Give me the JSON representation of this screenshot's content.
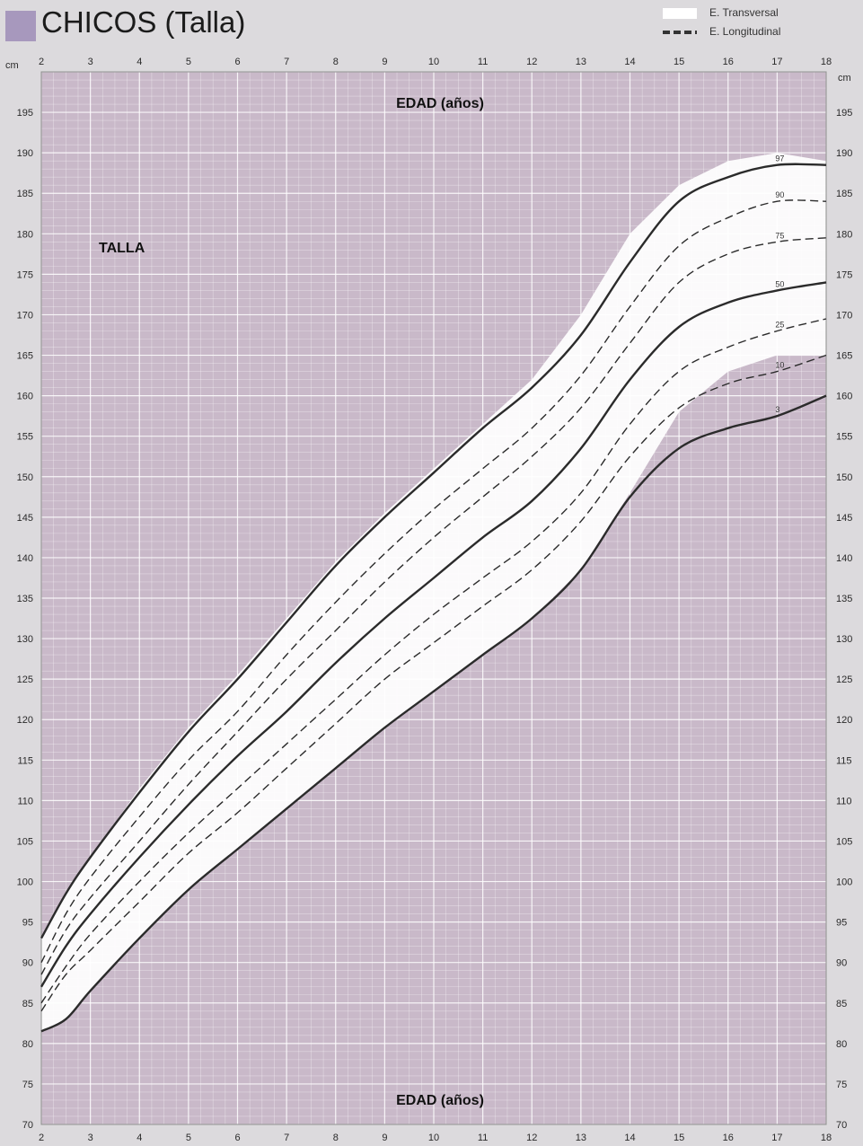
{
  "header": {
    "title": "CHICOS (Talla)",
    "legend": [
      {
        "label": "E. Transversal",
        "swatch": "white-band"
      },
      {
        "label": "E. Longitudinal",
        "swatch": "dashed-line"
      }
    ]
  },
  "colors": {
    "page_bg": "#dcdadd",
    "plot_bg": "#c9b9c9",
    "band": "#ffffff",
    "title_square": "#a798bd",
    "line": "#2b2b2b"
  },
  "chart_data": {
    "type": "line",
    "unit_label": "cm",
    "xlabel": "EDAD (años)",
    "ylabel": "TALLA",
    "xlim": [
      2,
      18
    ],
    "ylim": [
      70,
      200
    ],
    "grid": true,
    "x_ticks": [
      2,
      3,
      4,
      5,
      6,
      7,
      8,
      9,
      10,
      11,
      12,
      13,
      14,
      15,
      16,
      17,
      18
    ],
    "y_ticks": [
      70,
      75,
      80,
      85,
      90,
      95,
      100,
      105,
      110,
      115,
      120,
      125,
      130,
      135,
      140,
      145,
      150,
      155,
      160,
      165,
      170,
      175,
      180,
      185,
      190,
      195
    ],
    "legend_position": "top-right",
    "x": [
      2,
      2.5,
      3,
      4,
      5,
      6,
      7,
      8,
      9,
      10,
      11,
      12,
      13,
      14,
      15,
      16,
      17,
      18
    ],
    "series": [
      {
        "name": "97",
        "style": "solid",
        "values": [
          93,
          98.5,
          103,
          111,
          118.5,
          125,
          132,
          139,
          145,
          150.5,
          156,
          161,
          167.5,
          176.5,
          184,
          187,
          188.5,
          188.5
        ]
      },
      {
        "name": "90",
        "style": "dashed",
        "values": [
          90,
          96,
          100.5,
          108,
          115,
          121,
          128,
          134.5,
          140.5,
          146,
          151,
          156,
          162.5,
          171,
          178.5,
          182,
          184,
          184
        ]
      },
      {
        "name": "75",
        "style": "dashed",
        "values": [
          88.5,
          94,
          98,
          105,
          112,
          118.5,
          125,
          131,
          137,
          142.5,
          147.5,
          152.5,
          158.5,
          166.5,
          174,
          177.5,
          179,
          179.5
        ]
      },
      {
        "name": "50",
        "style": "solid",
        "values": [
          87,
          92,
          96,
          103,
          109.5,
          115.5,
          121,
          127,
          132.5,
          137.5,
          142.5,
          147,
          153.5,
          162,
          168.5,
          171.5,
          173,
          174
        ]
      },
      {
        "name": "25",
        "style": "dashed",
        "values": [
          85,
          89.5,
          93.5,
          100,
          106,
          111.5,
          117,
          122.5,
          128,
          133,
          137.5,
          142,
          148,
          156.5,
          163,
          166,
          168,
          169.5
        ]
      },
      {
        "name": "10",
        "style": "dashed",
        "values": [
          84,
          88.5,
          91.5,
          97.5,
          103.5,
          108.5,
          114,
          119.5,
          125,
          129.5,
          134,
          138.5,
          144.5,
          152.5,
          158.5,
          161.5,
          163,
          165
        ]
      },
      {
        "name": "3",
        "style": "solid",
        "values": [
          81.5,
          83,
          86.5,
          93,
          99,
          104,
          109,
          114,
          119,
          123.5,
          128,
          132.5,
          138.5,
          147.5,
          153.5,
          156,
          157.5,
          160
        ]
      }
    ],
    "band": {
      "description": "E. Transversal",
      "upper": [
        93,
        98.5,
        103,
        111.5,
        119,
        125.5,
        132.5,
        139.5,
        145.5,
        151,
        156.5,
        162,
        170,
        180,
        186,
        189,
        190,
        189
      ],
      "lower": [
        81.5,
        83,
        86.5,
        93,
        99,
        104,
        109,
        114,
        119,
        123.5,
        128,
        132.5,
        138.5,
        148,
        158,
        163,
        165,
        165
      ]
    }
  }
}
